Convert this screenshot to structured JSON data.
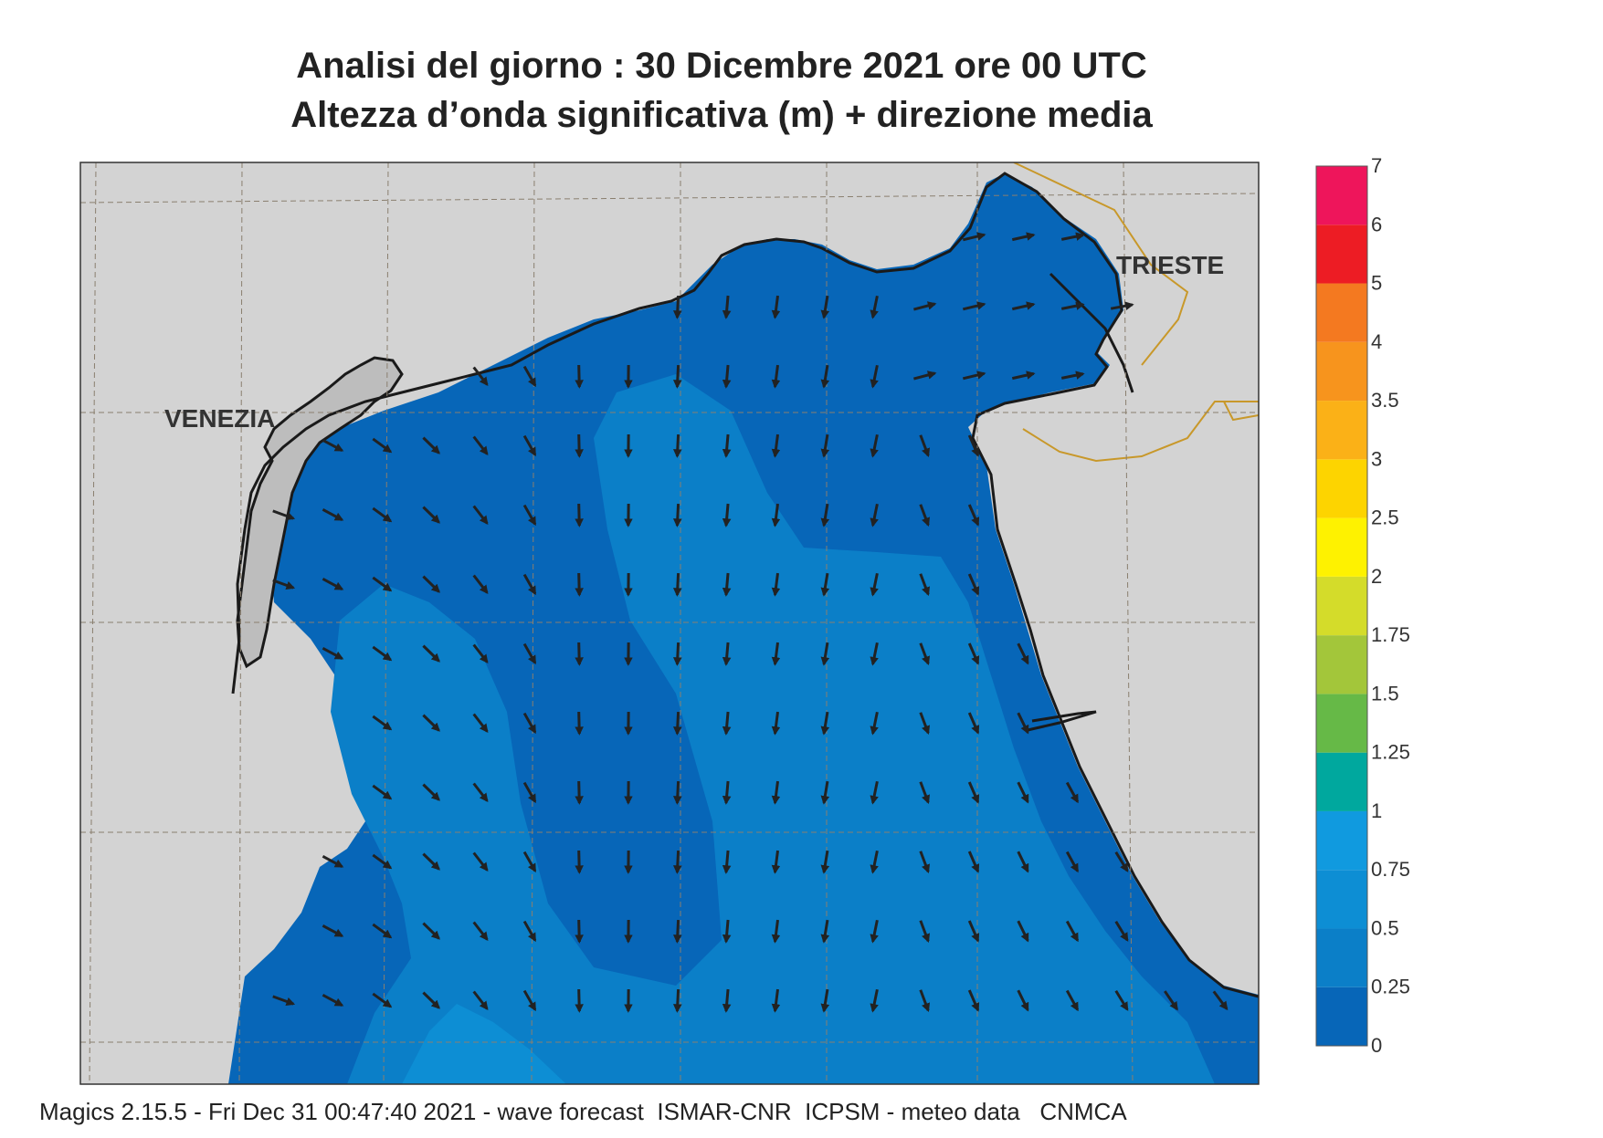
{
  "title_line1": "Analisi del giorno :  30 Dicembre  2021   ore 00 UTC",
  "title_line2": "Altezza d’onda significativa (m) + direzione media",
  "city_labels": {
    "venezia": "VENEZIA",
    "trieste": "TRIESTE"
  },
  "colorbar": {
    "labels": [
      "0",
      "0.25",
      "0.5",
      "0.75",
      "1",
      "1.25",
      "1.5",
      "1.75",
      "2",
      "2.5",
      "3",
      "3.5",
      "4",
      "5",
      "6",
      "7"
    ],
    "colors": [
      "#0766b8",
      "#0b7fc8",
      "#0d8ed4",
      "#109adf",
      "#00a89e",
      "#66b947",
      "#a3c63a",
      "#d4dc2a",
      "#fef200",
      "#fdd400",
      "#fbb117",
      "#f7941d",
      "#f47920",
      "#ed1c24",
      "#ee155b"
    ]
  },
  "footer": "Magics 2.15.5 - Fri Dec 31 00:47:40 2021 - wave forecast  ISMAR-CNR  ICPSM - meteo data   CNMCA",
  "colors": {
    "land": "#d3d3d3",
    "sea_low": "#0766b8",
    "sea_mid": "#0b7fc8",
    "sea_high": "#0d8ed4",
    "border": "#c8982a"
  }
}
